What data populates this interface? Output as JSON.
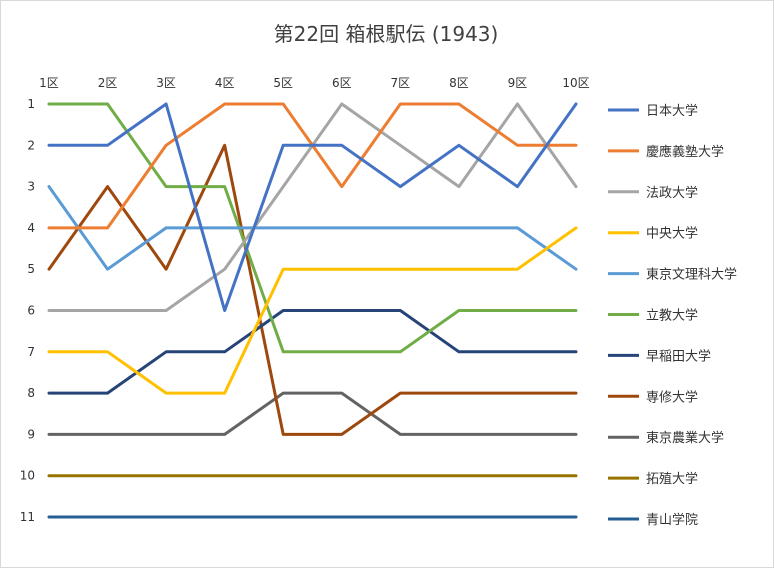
{
  "chart_data": {
    "type": "line",
    "title": "第22回 箱根駅伝 (1943)",
    "xlabel": "",
    "ylabel": "",
    "categories": [
      "1区",
      "2区",
      "3区",
      "4区",
      "5区",
      "6区",
      "7区",
      "8区",
      "9区",
      "10区"
    ],
    "y_ticks": [
      "1",
      "2",
      "3",
      "4",
      "5",
      "6",
      "7",
      "8",
      "9",
      "10",
      "11"
    ],
    "ylim": [
      1,
      11
    ],
    "y_reversed": true,
    "grid": false,
    "legend_position": "right",
    "series": [
      {
        "name": "日本大学",
        "color": "#4472C4",
        "values": [
          2,
          2,
          1,
          6,
          2,
          2,
          3,
          2,
          3,
          1
        ]
      },
      {
        "name": "慶應義塾大学",
        "color": "#ED7D31",
        "values": [
          4,
          4,
          2,
          1,
          1,
          3,
          1,
          1,
          2,
          2
        ]
      },
      {
        "name": "法政大学",
        "color": "#A5A5A5",
        "values": [
          6,
          6,
          6,
          5,
          3,
          1,
          2,
          3,
          1,
          3
        ]
      },
      {
        "name": "中央大学",
        "color": "#FFC000",
        "values": [
          7,
          7,
          8,
          8,
          5,
          5,
          5,
          5,
          5,
          4
        ]
      },
      {
        "name": "東京文理科大学",
        "color": "#5B9BD5",
        "values": [
          3,
          5,
          4,
          4,
          4,
          4,
          4,
          4,
          4,
          5
        ]
      },
      {
        "name": "立教大学",
        "color": "#70AD47",
        "values": [
          1,
          1,
          3,
          3,
          7,
          7,
          7,
          6,
          6,
          6
        ]
      },
      {
        "name": "早稲田大学",
        "color": "#264478",
        "values": [
          8,
          8,
          7,
          7,
          6,
          6,
          6,
          7,
          7,
          7
        ]
      },
      {
        "name": "専修大学",
        "color": "#9E480E",
        "values": [
          5,
          3,
          5,
          2,
          9,
          9,
          8,
          8,
          8,
          8
        ]
      },
      {
        "name": "東京農業大学",
        "color": "#636363",
        "values": [
          9,
          9,
          9,
          9,
          8,
          8,
          9,
          9,
          9,
          9
        ]
      },
      {
        "name": "拓殖大学",
        "color": "#997300",
        "values": [
          10,
          10,
          10,
          10,
          10,
          10,
          10,
          10,
          10,
          10
        ]
      },
      {
        "name": "青山学院",
        "color": "#255E91",
        "values": [
          11,
          11,
          11,
          11,
          11,
          11,
          11,
          11,
          11,
          11
        ]
      }
    ]
  }
}
